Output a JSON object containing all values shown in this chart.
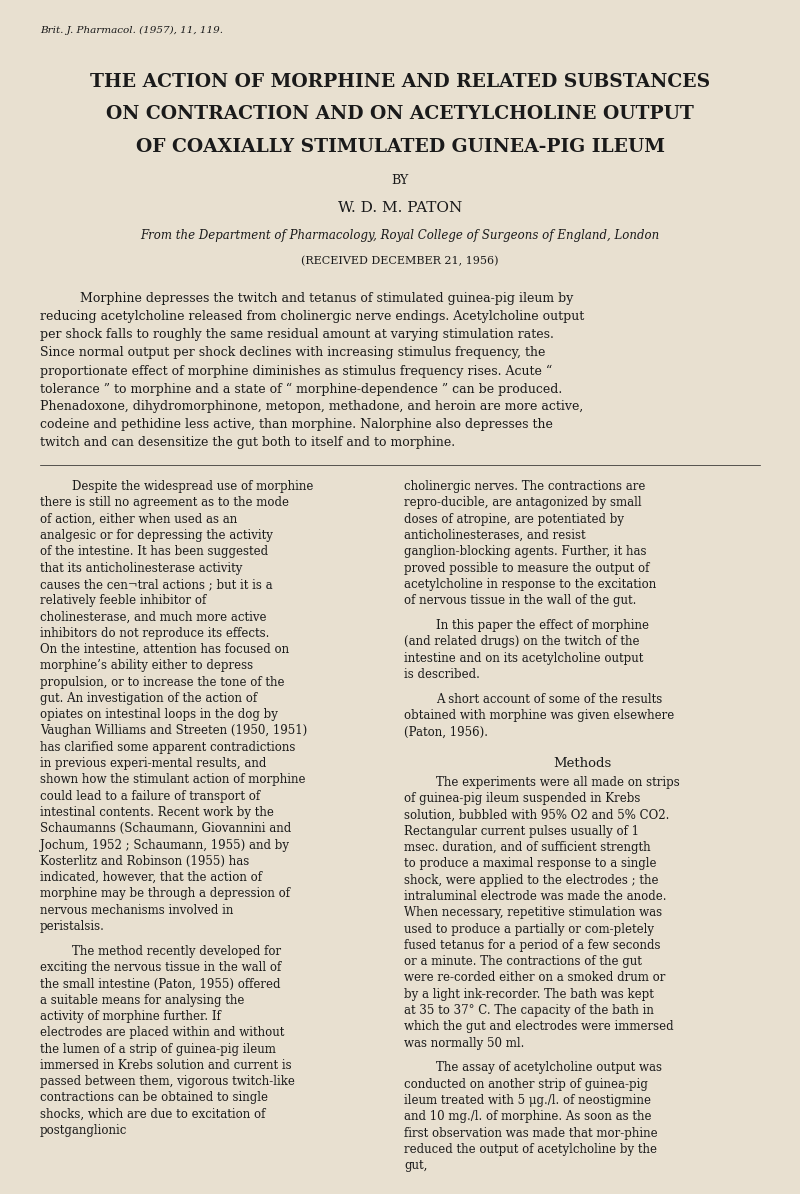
{
  "background_color": "#e8e0d0",
  "text_color": "#1a1a1a",
  "page_width": 8.0,
  "page_height": 11.94,
  "journal_ref": "Brit. J. Pharmacol. (1957), 11, 119.",
  "title_line1": "THE ACTION OF MORPHINE AND RELATED SUBSTANCES",
  "title_line2": "ON CONTRACTION AND ON ACETYLCHOLINE OUTPUT",
  "title_line3": "OF COAXIALLY STIMULATED GUINEA-PIG ILEUM",
  "by_text": "BY",
  "author": "W. D. M. PATON",
  "affiliation": "From the Department of Pharmacology, Royal College of Surgeons of England, London",
  "received": "(RECEIVED DECEMBER 21, 1956)",
  "abstract": "Morphine depresses the twitch and tetanus of stimulated guinea-pig ileum by reducing acetylcholine released from cholinergic nerve endings.  Acetylcholine output per shock falls to roughly the same residual amount at varying stimulation rates.  Since normal output per shock declines with increasing stimulus frequency, the proportionate effect of morphine diminishes as stimulus frequency rises.  Acute “ tolerance ” to morphine and a state of “ morphine-dependence ” can be produced.  Phenadoxone, dihydromorphinone, metopon, methadone, and heroin are more active, codeine and pethidine less active, than morphine.  Nalorphine also depresses the twitch and can desensitize the gut both to itself and to morphine.",
  "col1_para1": "Despite the widespread use of morphine there is still no agreement as to the mode of action, either when used as an analgesic or for depressing the activity of the intestine.  It has been suggested that its anticholinesterase activity causes the cen¬tral actions ; but it is a relatively feeble inhibitor of cholinesterase, and much more active inhibitors do not reproduce its effects.  On the intestine, attention has focused on morphine’s ability either to depress propulsion, or to increase the tone of the gut.  An investigation of the action of opiates on intestinal loops in the dog by Vaughan Williams and Streeten (1950, 1951) has clarified some apparent contradictions in previous experi­mental results, and shown how the stimulant action of morphine could lead to a failure of transport of intestinal contents.  Recent work by the Schaumanns (Schaumann, Giovannini and Jochum, 1952 ; Schaumann, 1955) and by Kosterlitz and Robinson (1955) has indicated, however, that the action of morphine may be through a depression of nervous mechanisms involved in peristalsis.",
  "col1_para1_italic_word": "stimulant",
  "col1_para2": "The method recently developed for exciting the nervous tissue in the wall of the small intestine (Paton, 1955) offered a suitable means for analysing the activity of morphine further.  If electrodes are placed within and without the lumen of a strip of guinea-pig ileum immersed in Krebs solution and current is passed between them, vigorous twitch-like contractions can be obtained to single shocks, which are due to excitation of postganglionic",
  "col2_para1": "cholinergic nerves.  The contractions are repro­ducible, are antagonized by small doses of atropine, are potentiated by anticholinesterases, and resist ganglion-blocking agents.  Further, it has proved possible to measure the output of acetylcholine in response to the excitation of nervous tissue in the wall of the gut.",
  "col2_para2": "In this paper the effect of morphine (and related drugs) on the twitch of the intestine and on its acetylcholine output is described.",
  "col2_para3": "A short account of some of the results obtained with morphine was given elsewhere (Paton, 1956).",
  "col2_methods_heading": "Methods",
  "col2_methods": "The experiments were all made on strips of guinea-pig ileum suspended in Krebs solution, bubbled with 95% O2 and 5% CO2.  Rectangular current pulses usually of 1 msec. duration, and of sufficient strength to produce a maximal response to a single shock, were applied to the electrodes ; the intraluminal electrode was made the anode.  When necessary, repetitive stimulation was used to produce a partially or com­pletely fused tetanus for a period of a few seconds or a minute.  The contractions of the gut were re­corded either on a smoked drum or by a light ink-recorder.  The bath was kept at 35 to 37° C.  The capacity of the bath in which the gut and electrodes were immersed was normally 50 ml.",
  "col2_methods2": "The assay of acetylcholine output was conducted on another strip of guinea-pig ileum treated with 5 μg./l. of neostigmine and 10 mg./l. of morphine.  As soon as the first observation was made that mor­phine reduced the output of acetylcholine by the gut,"
}
